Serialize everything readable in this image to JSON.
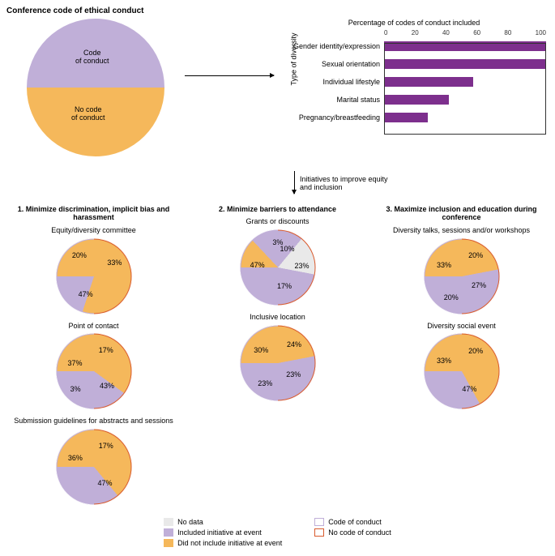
{
  "title": "Conference code of ethical conduct",
  "colors": {
    "purple": "#c0afd8",
    "purple_dark": "#7d2f8d",
    "orange": "#f5b85b",
    "orange_border": "#d95b2e",
    "nodata": "#e9e9e9",
    "axis": "#333333"
  },
  "big_pie": {
    "top_label": "Code\nof conduct",
    "bottom_label": "No code\nof conduct",
    "top_pct": 50,
    "bottom_pct": 50
  },
  "bar_chart": {
    "x_title": "Percentage of codes of conduct included",
    "y_title": "Type of diversity",
    "xlim": [
      0,
      100
    ],
    "xtick_step": 20,
    "bars": [
      {
        "label": "Gender identity/expression",
        "value": 100
      },
      {
        "label": "Sexual orientation",
        "value": 100
      },
      {
        "label": "Individual lifestyle",
        "value": 55
      },
      {
        "label": "Marital status",
        "value": 40
      },
      {
        "label": "Pregnancy/breastfeeding",
        "value": 27
      }
    ]
  },
  "arrow_down_label": "Initiatives to improve equity and inclusion",
  "columns": [
    {
      "title": "1. Minimize discrimination, implicit bias and harassment",
      "pies": [
        {
          "title": "Equity/diversity committee",
          "slices": [
            {
              "c": "orange",
              "pct": 33,
              "exploded": true
            },
            {
              "c": "orange",
              "pct": 47
            },
            {
              "c": "purple",
              "pct": 20,
              "exploded": true
            }
          ]
        },
        {
          "title": "Point of contact",
          "slices": [
            {
              "c": "orange",
              "pct": 17,
              "exploded": true
            },
            {
              "c": "orange",
              "pct": 43
            },
            {
              "c": "purple",
              "pct": 3,
              "exploded": true
            },
            {
              "c": "purple",
              "pct": 37
            }
          ]
        },
        {
          "title": "Submission guidelines for abstracts and sessions",
          "slices": [
            {
              "c": "orange",
              "pct": 17,
              "exploded": true
            },
            {
              "c": "orange",
              "pct": 47
            },
            {
              "c": "purple",
              "pct": 36
            }
          ]
        }
      ]
    },
    {
      "title": "2. Minimize barriers to attendance",
      "pies": [
        {
          "title": "Grants or discounts",
          "slices": [
            {
              "c": "orange",
              "pct": 3,
              "exploded": true
            },
            {
              "c": "orange",
              "pct": 10
            },
            {
              "c": "purple",
              "pct": 23,
              "exploded": true
            },
            {
              "c": "nodata",
              "pct": 17
            },
            {
              "c": "purple",
              "pct": 47
            }
          ]
        },
        {
          "title": "Inclusive location",
          "slices": [
            {
              "c": "orange",
              "pct": 24,
              "exploded": true
            },
            {
              "c": "orange",
              "pct": 23
            },
            {
              "c": "purple",
              "pct": 23,
              "exploded": true
            },
            {
              "c": "purple",
              "pct": 30
            }
          ]
        }
      ]
    },
    {
      "title": "3. Maximize inclusion and education during conference",
      "pies": [
        {
          "title": "Diversity talks, sessions and/or workshops",
          "slices": [
            {
              "c": "orange",
              "pct": 20,
              "exploded": true
            },
            {
              "c": "orange",
              "pct": 27
            },
            {
              "c": "purple",
              "pct": 20,
              "exploded": true
            },
            {
              "c": "purple",
              "pct": 33
            }
          ]
        },
        {
          "title": "Diversity social event",
          "slices": [
            {
              "c": "orange",
              "pct": 20,
              "exploded": true
            },
            {
              "c": "orange",
              "pct": 47
            },
            {
              "c": "purple",
              "pct": 33
            }
          ]
        }
      ]
    }
  ],
  "legend": {
    "left": [
      {
        "kind": "fill",
        "color": "nodata",
        "label": "No data"
      },
      {
        "kind": "fill",
        "color": "purple",
        "label": "Included initiative at event"
      },
      {
        "kind": "fill",
        "color": "orange",
        "label": "Did not include initiative at event"
      }
    ],
    "right": [
      {
        "kind": "outline",
        "color": "purple",
        "label": "Code of conduct"
      },
      {
        "kind": "outline",
        "color": "orange_border",
        "label": "No code of conduct"
      }
    ]
  }
}
